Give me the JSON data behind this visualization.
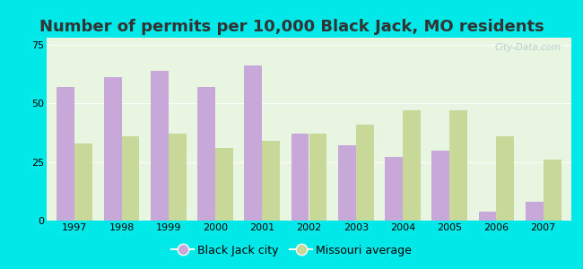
{
  "title": "Number of permits per 10,000 Black Jack, MO residents",
  "years": [
    1997,
    1998,
    1999,
    2000,
    2001,
    2002,
    2003,
    2004,
    2005,
    2006,
    2007
  ],
  "black_jack": [
    57,
    61,
    64,
    57,
    66,
    37,
    32,
    27,
    30,
    4,
    8
  ],
  "missouri_avg": [
    33,
    36,
    37,
    31,
    34,
    37,
    41,
    47,
    47,
    36,
    26
  ],
  "color_city": "#c8a8d8",
  "color_avg": "#c8d898",
  "background_outer": "#00e8e8",
  "background_inner": "#e8f5e0",
  "yticks": [
    0,
    25,
    50,
    75
  ],
  "ylim": [
    0,
    78
  ],
  "bar_width": 0.38,
  "legend_city": "Black Jack city",
  "legend_avg": "Missouri average",
  "watermark": "City-Data.com",
  "title_color": "#333333",
  "title_fontsize": 13
}
